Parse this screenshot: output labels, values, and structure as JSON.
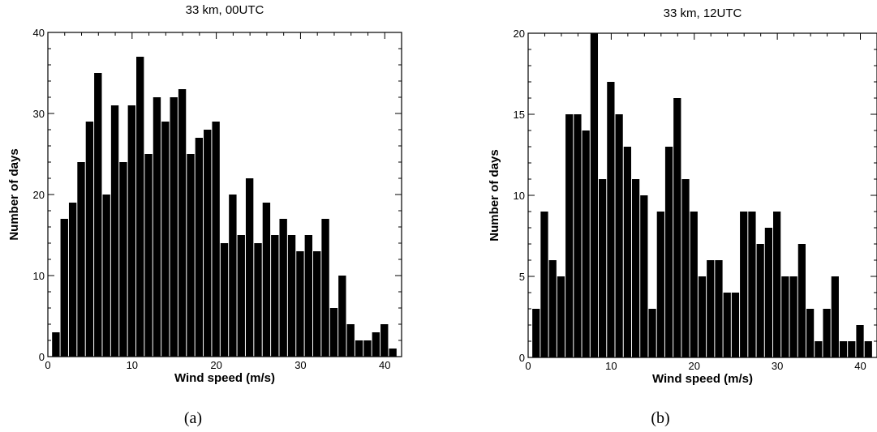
{
  "chart_data": [
    {
      "type": "bar",
      "title": "33 km, 00UTC",
      "xlabel": "Wind speed (m/s)",
      "ylabel": "Number of days",
      "panel_label": "(a)",
      "xlim": [
        0,
        42
      ],
      "ylim": [
        0,
        40
      ],
      "xticks": [
        0,
        10,
        20,
        30,
        40
      ],
      "yticks": [
        0,
        10,
        20,
        30,
        40
      ],
      "bin_width": 1,
      "bin_start": 0.5,
      "values": [
        3,
        17,
        19,
        24,
        29,
        35,
        20,
        31,
        24,
        31,
        37,
        25,
        32,
        29,
        32,
        33,
        25,
        27,
        28,
        29,
        14,
        20,
        15,
        22,
        14,
        19,
        15,
        17,
        15,
        13,
        15,
        13,
        17,
        6,
        10,
        4,
        2,
        2,
        3,
        4,
        1
      ]
    },
    {
      "type": "bar",
      "title": "33 km, 12UTC",
      "xlabel": "Wind speed (m/s)",
      "ylabel": "Number of days",
      "panel_label": "(b)",
      "xlim": [
        0,
        42
      ],
      "ylim": [
        0,
        20
      ],
      "xticks": [
        0,
        10,
        20,
        30,
        40
      ],
      "yticks": [
        0,
        5,
        10,
        15,
        20
      ],
      "bin_width": 1,
      "bin_start": 0.5,
      "values": [
        3,
        9,
        6,
        5,
        15,
        15,
        14,
        20,
        11,
        17,
        15,
        13,
        11,
        10,
        3,
        9,
        13,
        16,
        11,
        9,
        5,
        6,
        6,
        4,
        4,
        9,
        9,
        7,
        8,
        9,
        5,
        5,
        7,
        3,
        1,
        3,
        5,
        1,
        1,
        2,
        1
      ]
    }
  ]
}
